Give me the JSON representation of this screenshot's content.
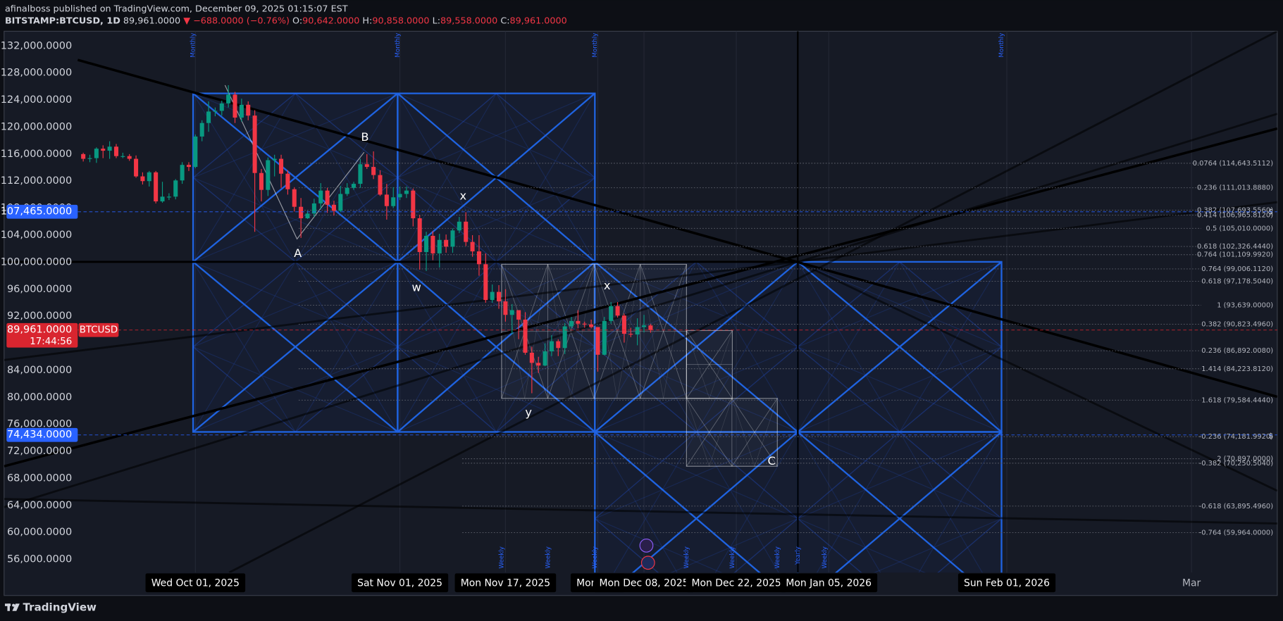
{
  "header": {
    "author": "afinalboss published on TradingView.com, December 09, 2025 01:15:07 EST",
    "symbol": "BITSTAMP:BTCUSD, 1D",
    "last": "89,961.0000",
    "change": "▼ −688.0000 (−0.76%)",
    "ohlc": [
      {
        "key": "O:",
        "value": "90,642.0000"
      },
      {
        "key": "H:",
        "value": "90,858.0000"
      },
      {
        "key": "L:",
        "value": "89,558.0000"
      },
      {
        "key": "C:",
        "value": "89,961.0000"
      }
    ]
  },
  "footer": "TradingView",
  "chart_data": {
    "type": "candlestick",
    "up_color": "#089981",
    "down_color": "#f23645",
    "grid": false,
    "x": [
      "2025-09-14",
      "2025-09-15",
      "2025-09-16",
      "2025-09-17",
      "2025-09-18",
      "2025-09-19",
      "2025-09-20",
      "2025-09-21",
      "2025-09-22",
      "2025-09-23",
      "2025-09-24",
      "2025-09-25",
      "2025-09-26",
      "2025-09-27",
      "2025-09-28",
      "2025-09-29",
      "2025-09-30",
      "2025-10-01",
      "2025-10-02",
      "2025-10-03",
      "2025-10-04",
      "2025-10-05",
      "2025-10-06",
      "2025-10-07",
      "2025-10-08",
      "2025-10-09",
      "2025-10-10",
      "2025-10-11",
      "2025-10-12",
      "2025-10-13",
      "2025-10-14",
      "2025-10-15",
      "2025-10-16",
      "2025-10-17",
      "2025-10-18",
      "2025-10-19",
      "2025-10-20",
      "2025-10-21",
      "2025-10-22",
      "2025-10-23",
      "2025-10-24",
      "2025-10-25",
      "2025-10-26",
      "2025-10-27",
      "2025-10-28",
      "2025-10-29",
      "2025-10-30",
      "2025-10-31",
      "2025-11-01",
      "2025-11-02",
      "2025-11-03",
      "2025-11-04",
      "2025-11-05",
      "2025-11-06",
      "2025-11-07",
      "2025-11-08",
      "2025-11-09",
      "2025-11-10",
      "2025-11-11",
      "2025-11-12",
      "2025-11-13",
      "2025-11-14",
      "2025-11-15",
      "2025-11-16",
      "2025-11-17",
      "2025-11-18",
      "2025-11-19",
      "2025-11-20",
      "2025-11-21",
      "2025-11-22",
      "2025-11-23",
      "2025-11-24",
      "2025-11-25",
      "2025-11-26",
      "2025-11-27",
      "2025-11-28",
      "2025-11-29",
      "2025-11-30",
      "2025-12-01",
      "2025-12-02",
      "2025-12-03",
      "2025-12-04",
      "2025-12-05",
      "2025-12-06",
      "2025-12-07",
      "2025-12-08",
      "2025-12-09"
    ],
    "open": [
      116000,
      115300,
      115400,
      116800,
      116500,
      117100,
      115700,
      115700,
      115300,
      112700,
      112000,
      113300,
      109000,
      109700,
      109700,
      112100,
      114400,
      114100,
      118600,
      120600,
      122300,
      122400,
      123500,
      124800,
      121400,
      123300,
      121700,
      113200,
      110700,
      115100,
      115300,
      113100,
      110800,
      108200,
      106500,
      107200,
      108700,
      110600,
      108500,
      107600,
      110100,
      111000,
      111600,
      114500,
      114100,
      112900,
      110000,
      108300,
      109600,
      110100,
      110600,
      106500,
      101500,
      103900,
      101300,
      103300,
      102300,
      104700,
      106000,
      103000,
      101600,
      99700,
      94400,
      95600,
      94200,
      92200,
      92900,
      91500,
      86600,
      85100,
      84700,
      86800,
      88300,
      87300,
      90500,
      91300,
      90900,
      90800,
      90400,
      86300,
      91300,
      93500,
      92100,
      89400,
      89300,
      90400,
      90642
    ],
    "high": [
      116200,
      115900,
      117000,
      117300,
      117900,
      117500,
      116200,
      116000,
      115800,
      113300,
      113500,
      113500,
      111900,
      110200,
      112300,
      114800,
      114800,
      118900,
      121000,
      123800,
      122900,
      123900,
      126200,
      125200,
      124200,
      123800,
      122500,
      113800,
      115500,
      115900,
      115900,
      113600,
      111100,
      109500,
      107600,
      109400,
      111700,
      111000,
      109100,
      111300,
      111700,
      111900,
      115300,
      116000,
      116400,
      113600,
      111600,
      111100,
      111200,
      111200,
      110900,
      107000,
      104500,
      104600,
      104200,
      104100,
      105000,
      106700,
      107400,
      104000,
      104000,
      101300,
      96700,
      96600,
      96000,
      93800,
      92900,
      92600,
      87500,
      86000,
      88000,
      89200,
      88600,
      91000,
      91900,
      92900,
      91200,
      91500,
      90400,
      91900,
      94100,
      94100,
      92400,
      90300,
      91700,
      92200,
      90858
    ],
    "low": [
      114900,
      114800,
      114700,
      115400,
      115300,
      115400,
      115400,
      115000,
      112500,
      111500,
      111200,
      108700,
      108800,
      109200,
      109300,
      111600,
      113500,
      113900,
      117900,
      119300,
      121600,
      121700,
      122900,
      120600,
      120800,
      121000,
      104500,
      109000,
      109800,
      112700,
      111000,
      110000,
      107500,
      103600,
      106400,
      106700,
      107900,
      107300,
      106900,
      107400,
      109800,
      110700,
      111000,
      113800,
      112300,
      109800,
      106300,
      108000,
      109200,
      109500,
      105300,
      98900,
      98700,
      100300,
      99200,
      101400,
      101400,
      104300,
      102400,
      100800,
      98000,
      94000,
      94000,
      93100,
      91200,
      89300,
      88600,
      86300,
      80600,
      83600,
      84600,
      86100,
      86100,
      86400,
      90200,
      90200,
      90300,
      90200,
      83800,
      86200,
      90900,
      91800,
      88100,
      88900,
      87700,
      89600,
      89558
    ],
    "close": [
      115300,
      115400,
      116800,
      116500,
      117100,
      115700,
      115700,
      115300,
      112700,
      112000,
      113300,
      109000,
      109700,
      109700,
      112100,
      114400,
      114100,
      118600,
      120600,
      122300,
      122400,
      123500,
      124800,
      121400,
      123300,
      121700,
      113200,
      110700,
      115100,
      115300,
      113100,
      110800,
      108200,
      106500,
      107200,
      108700,
      110600,
      108500,
      107600,
      110100,
      111000,
      111600,
      114500,
      114100,
      112900,
      110000,
      108300,
      109600,
      110100,
      110600,
      106500,
      101500,
      103900,
      101300,
      103300,
      102300,
      104700,
      106000,
      103000,
      101600,
      99700,
      94400,
      95600,
      94200,
      92200,
      92900,
      91500,
      86600,
      85100,
      84700,
      86800,
      88300,
      87300,
      90500,
      91300,
      90900,
      90800,
      90400,
      86300,
      91300,
      93500,
      92100,
      89400,
      89300,
      90400,
      90649,
      89961
    ],
    "xlim": [
      "2025-09-02",
      "2026-03-14"
    ],
    "xticks": [
      {
        "value": "2025-10-01",
        "label": "Wed Oct 01, 2025"
      },
      {
        "value": "2025-11-01",
        "label": "Sat Nov 01, 2025"
      },
      {
        "value": "2025-11-17",
        "label": "Mon Nov 17, 2025"
      },
      {
        "value": "2025-12-01",
        "label": "Mon Dec"
      },
      {
        "value": "2025-12-08",
        "label": "Mon Dec 08, 2025"
      },
      {
        "value": "2025-12-22",
        "label": "Mon Dec 22, 2025"
      },
      {
        "value": "2026-01-05",
        "label": "Mon Jan 05, 2026"
      },
      {
        "value": "2026-02-01",
        "label": "Sun Feb 01, 2026"
      },
      {
        "value": "2026-03-01",
        "label": "Mar"
      }
    ],
    "ylim": [
      54060,
      134180
    ],
    "yticks": [
      {
        "value": 132000,
        "label": "132,000.0000"
      },
      {
        "value": 128000,
        "label": "128,000.0000"
      },
      {
        "value": 124000,
        "label": "124,000.0000"
      },
      {
        "value": 120000,
        "label": "120,000.0000"
      },
      {
        "value": 116000,
        "label": "116,000.0000"
      },
      {
        "value": 112000,
        "label": "112,000.0000"
      },
      {
        "value": 108000,
        "label": "108,000.0000"
      },
      {
        "value": 104000,
        "label": "104,000.0000"
      },
      {
        "value": 100000,
        "label": "100,000.0000"
      },
      {
        "value": 96000,
        "label": "96,000.0000"
      },
      {
        "value": 92000,
        "label": "92,000.0000"
      },
      {
        "value": 88000,
        "label": "88,000.0000"
      },
      {
        "value": 84000,
        "label": "84,000.0000"
      },
      {
        "value": 80000,
        "label": "80,000.0000"
      },
      {
        "value": 76000,
        "label": "76,000.0000"
      },
      {
        "value": 72000,
        "label": "72,000.0000"
      },
      {
        "value": 68000,
        "label": "68,000.0000"
      },
      {
        "value": 64000,
        "label": "64,000.0000"
      },
      {
        "value": 60000,
        "label": "60,000.0000"
      },
      {
        "value": 56000,
        "label": "56,000.0000"
      }
    ],
    "price_tags": [
      {
        "value": 107465,
        "label": "107,465.0000",
        "color": "#2962ff"
      },
      {
        "value": 89961,
        "label": "89,961.0000",
        "color": "#d9252f",
        "symbol": "BTCUSD",
        "countdown": "17:44:56"
      },
      {
        "value": 74434,
        "label": "74,434.0000",
        "color": "#2962ff"
      }
    ],
    "fib_levels": [
      {
        "value": 114643.5112,
        "label": "0.0764 (114,643.5112)"
      },
      {
        "value": 111013.888,
        "label": "0.236 (111,013.8880)"
      },
      {
        "value": 107693.556,
        "label": "0.382 (107,693.5560)"
      },
      {
        "value": 106965.812,
        "label": "0.414 (106,965.8120)"
      },
      {
        "value": 105010,
        "label": "0.5 (105,010.0000)"
      },
      {
        "value": 102326.444,
        "label": "0.618 (102,326.4440)"
      },
      {
        "value": 101109.992,
        "label": "0.764 (101,109.9920)"
      },
      {
        "value": 99006.112,
        "label": "0.764 (99,006.1120)"
      },
      {
        "value": 97178.504,
        "label": "0.618 (97,178.5040)"
      },
      {
        "value": 93639,
        "label": "1 (93,639.0000)"
      },
      {
        "value": 90823.496,
        "label": "0.382 (90,823.4960)"
      },
      {
        "value": 86892.008,
        "label": "0.236 (86,892.0080)"
      },
      {
        "value": 84223.812,
        "label": "1.414 (84,223.8120)"
      },
      {
        "value": 79584.444,
        "label": "1.618 (79,584.4440)"
      },
      {
        "value": 74181.992,
        "label": "-0.236 (74,181.9920)"
      },
      {
        "value": 70897,
        "label": "2 (70,897.0000)"
      },
      {
        "value": 70250.504,
        "label": "-0.382 (70,250.5040)"
      },
      {
        "value": 63895.496,
        "label": "-0.618 (63,895.4960)"
      },
      {
        "value": 59964,
        "label": "-0.764 (59,964.0000)"
      }
    ],
    "annotations": [
      "A",
      "B",
      "x",
      "w",
      "x",
      "y",
      "C"
    ],
    "cycle_labels": {
      "monthly": "Monthly",
      "weekly": "Weekly",
      "yearly": "Yearly"
    },
    "right_marks": [
      "$",
      "$"
    ]
  }
}
